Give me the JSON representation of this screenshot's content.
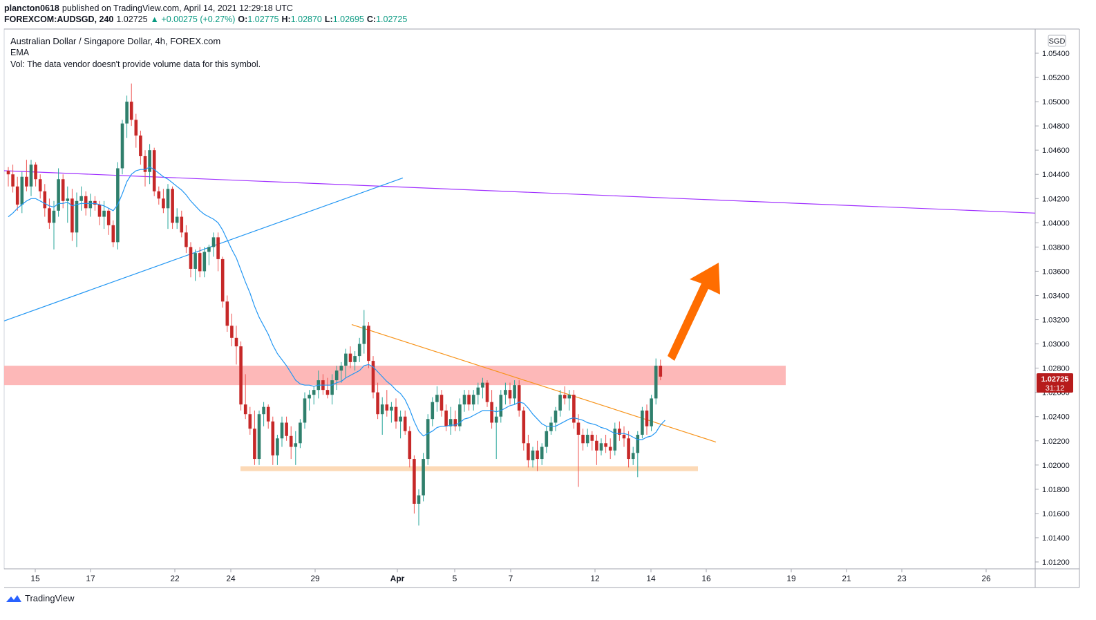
{
  "header": {
    "author": "plancton0618",
    "published_text": "published on TradingView.com, April 14, 2021 12:29:18 UTC",
    "symbol": "FOREXCOM:AUDSGD, 240",
    "last": "1.02725",
    "change": "▲ +0.00275 (+0.27%)",
    "o_label": "O:",
    "o_value": "1.02775",
    "h_label": "H:",
    "h_value": "1.02870",
    "l_label": "L:",
    "l_value": "1.02695",
    "c_label": "C:",
    "c_value": "1.02725"
  },
  "legend": {
    "title": "Australian Dollar / Singapore Dollar, 4h, FOREX.com",
    "indicator": "EMA",
    "volume_note": "Vol: The data vendor doesn't provide volume data for this symbol."
  },
  "currency": "SGD",
  "price_badge": {
    "price": "1.02725",
    "countdown": "31:12"
  },
  "brand": "TradingView",
  "colors": {
    "up": "#26a69a",
    "down": "#ef5350",
    "bull_body": "#2f7f6c",
    "bear_body": "#c62828",
    "ema": "#2196f3",
    "resistance_band": "#fdb4b4",
    "support_band": "#fcd9b6",
    "trend_purple": "#a030ff",
    "trend_blue": "#2196f3",
    "trend_orange": "#f7931a",
    "arrow": "#ff6d00"
  },
  "chart_data": {
    "type": "candlestick",
    "title": "Australian Dollar / Singapore Dollar, 4h, FOREX.com",
    "y_ticks": [
      "1.05400",
      "1.05200",
      "1.05000",
      "1.04800",
      "1.04600",
      "1.04400",
      "1.04200",
      "1.04000",
      "1.03800",
      "1.03600",
      "1.03400",
      "1.03200",
      "1.03000",
      "1.02800",
      "1.02600",
      "1.02400",
      "1.02200",
      "1.02000",
      "1.01800",
      "1.01600",
      "1.01400",
      "1.01200"
    ],
    "x_ticks": [
      "15",
      "17",
      "22",
      "24",
      "29",
      "Apr",
      "5",
      "7",
      "12",
      "14",
      "16",
      "19",
      "21",
      "23",
      "26"
    ],
    "ylim": [
      1.0112,
      1.0556
    ],
    "bar_count_range": [
      0,
      208
    ],
    "ohlc": [
      [
        1.0443,
        1.0446,
        1.043,
        1.044
      ],
      [
        1.044,
        1.0448,
        1.0425,
        1.043
      ],
      [
        1.043,
        1.0438,
        1.041,
        1.0415
      ],
      [
        1.0415,
        1.0442,
        1.0408,
        1.0438
      ],
      [
        1.0438,
        1.0452,
        1.0426,
        1.043
      ],
      [
        1.043,
        1.0452,
        1.0422,
        1.0448
      ],
      [
        1.0448,
        1.045,
        1.043,
        1.0436
      ],
      [
        1.0436,
        1.044,
        1.042,
        1.0426
      ],
      [
        1.0426,
        1.0432,
        1.0405,
        1.0412
      ],
      [
        1.0412,
        1.042,
        1.0395,
        1.04
      ],
      [
        1.04,
        1.0418,
        1.0378,
        1.041
      ],
      [
        1.041,
        1.0445,
        1.0405,
        1.0436
      ],
      [
        1.0436,
        1.044,
        1.0412,
        1.0418
      ],
      [
        1.0418,
        1.043,
        1.04,
        1.042
      ],
      [
        1.042,
        1.0428,
        1.0385,
        1.0392
      ],
      [
        1.0392,
        1.0425,
        1.038,
        1.0418
      ],
      [
        1.0418,
        1.043,
        1.041,
        1.0422
      ],
      [
        1.0422,
        1.0426,
        1.0406,
        1.0412
      ],
      [
        1.0412,
        1.0424,
        1.0405,
        1.0418
      ],
      [
        1.0418,
        1.0422,
        1.041,
        1.0415
      ],
      [
        1.0415,
        1.0418,
        1.0398,
        1.0405
      ],
      [
        1.0405,
        1.0418,
        1.0395,
        1.041
      ],
      [
        1.041,
        1.0412,
        1.039,
        1.0398
      ],
      [
        1.0398,
        1.0402,
        1.038,
        1.0384
      ],
      [
        1.0384,
        1.045,
        1.0378,
        1.0445
      ],
      [
        1.0445,
        1.0485,
        1.044,
        1.0482
      ],
      [
        1.0482,
        1.0505,
        1.047,
        1.05
      ],
      [
        1.05,
        1.0515,
        1.048,
        1.0485
      ],
      [
        1.0485,
        1.049,
        1.0462,
        1.0472
      ],
      [
        1.0472,
        1.0476,
        1.0448,
        1.0455
      ],
      [
        1.0455,
        1.046,
        1.043,
        1.0442
      ],
      [
        1.0442,
        1.0465,
        1.0432,
        1.046
      ],
      [
        1.046,
        1.0462,
        1.0422,
        1.0426
      ],
      [
        1.0426,
        1.043,
        1.0415,
        1.042
      ],
      [
        1.042,
        1.0428,
        1.0408,
        1.0412
      ],
      [
        1.0412,
        1.0432,
        1.0395,
        1.0428
      ],
      [
        1.0428,
        1.043,
        1.0395,
        1.04
      ],
      [
        1.04,
        1.0412,
        1.0395,
        1.0405
      ],
      [
        1.0405,
        1.041,
        1.0388,
        1.0392
      ],
      [
        1.0392,
        1.0398,
        1.0375,
        1.038
      ],
      [
        1.038,
        1.0384,
        1.0355,
        1.0362
      ],
      [
        1.0362,
        1.0378,
        1.0352,
        1.0375
      ],
      [
        1.0375,
        1.038,
        1.0355,
        1.036
      ],
      [
        1.036,
        1.038,
        1.0355,
        1.0376
      ],
      [
        1.0376,
        1.0382,
        1.0365,
        1.038
      ],
      [
        1.038,
        1.0392,
        1.0372,
        1.0388
      ],
      [
        1.0388,
        1.0392,
        1.036,
        1.037
      ],
      [
        1.037,
        1.0372,
        1.033,
        1.0335
      ],
      [
        1.0335,
        1.034,
        1.031,
        1.0315
      ],
      [
        1.0315,
        1.0325,
        1.0298,
        1.0305
      ],
      [
        1.0305,
        1.0315,
        1.0283,
        1.0298
      ],
      [
        1.0298,
        1.0302,
        1.0245,
        1.025
      ],
      [
        1.025,
        1.0275,
        1.0238,
        1.0242
      ],
      [
        1.0242,
        1.0248,
        1.0225,
        1.023
      ],
      [
        1.023,
        1.0245,
        1.02,
        1.0205
      ],
      [
        1.0205,
        1.0245,
        1.02,
        1.0242
      ],
      [
        1.0242,
        1.0252,
        1.0232,
        1.0248
      ],
      [
        1.0248,
        1.025,
        1.023,
        1.0236
      ],
      [
        1.0236,
        1.024,
        1.02,
        1.0208
      ],
      [
        1.0208,
        1.0225,
        1.02,
        1.0222
      ],
      [
        1.0222,
        1.024,
        1.0215,
        1.0235
      ],
      [
        1.0235,
        1.024,
        1.022,
        1.0224
      ],
      [
        1.0224,
        1.0232,
        1.0205,
        1.0215
      ],
      [
        1.0215,
        1.0228,
        1.02,
        1.0218
      ],
      [
        1.0218,
        1.0238,
        1.0214,
        1.0235
      ],
      [
        1.0235,
        1.026,
        1.023,
        1.0255
      ],
      [
        1.0255,
        1.0262,
        1.0245,
        1.0258
      ],
      [
        1.0258,
        1.0265,
        1.025,
        1.0262
      ],
      [
        1.0262,
        1.0278,
        1.0255,
        1.027
      ],
      [
        1.027,
        1.0275,
        1.0258,
        1.0262
      ],
      [
        1.0262,
        1.0272,
        1.0255,
        1.0258
      ],
      [
        1.0258,
        1.0275,
        1.025,
        1.027
      ],
      [
        1.027,
        1.0282,
        1.0262,
        1.0278
      ],
      [
        1.0278,
        1.0285,
        1.0268,
        1.0282
      ],
      [
        1.0282,
        1.0296,
        1.0272,
        1.0292
      ],
      [
        1.0292,
        1.0298,
        1.028,
        1.0285
      ],
      [
        1.0285,
        1.0294,
        1.0278,
        1.029
      ],
      [
        1.029,
        1.0305,
        1.0285,
        1.03
      ],
      [
        1.03,
        1.0328,
        1.0292,
        1.0315
      ],
      [
        1.0315,
        1.0318,
        1.028,
        1.0286
      ],
      [
        1.0286,
        1.029,
        1.0255,
        1.026
      ],
      [
        1.026,
        1.0268,
        1.0238,
        1.0242
      ],
      [
        1.0242,
        1.0256,
        1.0225,
        1.025
      ],
      [
        1.025,
        1.0262,
        1.024,
        1.0245
      ],
      [
        1.0245,
        1.0252,
        1.0235,
        1.0248
      ],
      [
        1.0248,
        1.0255,
        1.023,
        1.0236
      ],
      [
        1.0236,
        1.0245,
        1.0222,
        1.024
      ],
      [
        1.024,
        1.0245,
        1.0225,
        1.0228
      ],
      [
        1.0228,
        1.0232,
        1.0198,
        1.0205
      ],
      [
        1.0205,
        1.0208,
        1.016,
        1.0168
      ],
      [
        1.0168,
        1.018,
        1.015,
        1.0175
      ],
      [
        1.0175,
        1.021,
        1.017,
        1.0205
      ],
      [
        1.0205,
        1.0242,
        1.02,
        1.0238
      ],
      [
        1.0238,
        1.0256,
        1.0232,
        1.0252
      ],
      [
        1.0252,
        1.0265,
        1.0244,
        1.0258
      ],
      [
        1.0258,
        1.0262,
        1.024,
        1.0245
      ],
      [
        1.0245,
        1.025,
        1.0228,
        1.0232
      ],
      [
        1.0232,
        1.0248,
        1.0225,
        1.0238
      ],
      [
        1.0238,
        1.0245,
        1.0228,
        1.0232
      ],
      [
        1.0232,
        1.0255,
        1.0228,
        1.025
      ],
      [
        1.025,
        1.0262,
        1.0244,
        1.0258
      ],
      [
        1.0258,
        1.0262,
        1.0245,
        1.025
      ],
      [
        1.025,
        1.0262,
        1.0245,
        1.0258
      ],
      [
        1.0258,
        1.0268,
        1.025,
        1.0264
      ],
      [
        1.0264,
        1.0272,
        1.0255,
        1.0268
      ],
      [
        1.0268,
        1.027,
        1.0248,
        1.0252
      ],
      [
        1.0252,
        1.0262,
        1.023,
        1.0235
      ],
      [
        1.0235,
        1.0248,
        1.0205,
        1.024
      ],
      [
        1.024,
        1.0262,
        1.0235,
        1.0258
      ],
      [
        1.0258,
        1.0268,
        1.025,
        1.0262
      ],
      [
        1.0262,
        1.0268,
        1.025,
        1.0255
      ],
      [
        1.0255,
        1.027,
        1.025,
        1.0266
      ],
      [
        1.0266,
        1.027,
        1.024,
        1.0245
      ],
      [
        1.0245,
        1.0248,
        1.0212,
        1.0218
      ],
      [
        1.0218,
        1.0225,
        1.0198,
        1.0204
      ],
      [
        1.0204,
        1.0215,
        1.0198,
        1.0212
      ],
      [
        1.0212,
        1.022,
        1.0195,
        1.0205
      ],
      [
        1.0205,
        1.0218,
        1.02,
        1.0215
      ],
      [
        1.0215,
        1.0232,
        1.021,
        1.0228
      ],
      [
        1.0228,
        1.024,
        1.0225,
        1.0235
      ],
      [
        1.0235,
        1.0248,
        1.0228,
        1.0245
      ],
      [
        1.0245,
        1.0262,
        1.024,
        1.0258
      ],
      [
        1.0258,
        1.0265,
        1.025,
        1.0255
      ],
      [
        1.0255,
        1.0262,
        1.0245,
        1.0258
      ],
      [
        1.0258,
        1.0262,
        1.023,
        1.0235
      ],
      [
        1.0235,
        1.0242,
        1.0182,
        1.0225
      ],
      [
        1.0225,
        1.023,
        1.0212,
        1.0218
      ],
      [
        1.0218,
        1.023,
        1.0215,
        1.0225
      ],
      [
        1.0225,
        1.0228,
        1.0212,
        1.022
      ],
      [
        1.022,
        1.0225,
        1.02,
        1.0212
      ],
      [
        1.0212,
        1.0222,
        1.0208,
        1.0218
      ],
      [
        1.0218,
        1.0225,
        1.021,
        1.0215
      ],
      [
        1.0215,
        1.0222,
        1.0205,
        1.0212
      ],
      [
        1.0212,
        1.0235,
        1.0208,
        1.023
      ],
      [
        1.023,
        1.0236,
        1.022,
        1.0225
      ],
      [
        1.0225,
        1.0232,
        1.0215,
        1.0222
      ],
      [
        1.0222,
        1.0228,
        1.0198,
        1.0205
      ],
      [
        1.0205,
        1.0215,
        1.02,
        1.021
      ],
      [
        1.021,
        1.0228,
        1.019,
        1.0225
      ],
      [
        1.0225,
        1.0248,
        1.0222,
        1.0245
      ],
      [
        1.0245,
        1.025,
        1.0225,
        1.0232
      ],
      [
        1.0232,
        1.0258,
        1.0228,
        1.0255
      ],
      [
        1.0255,
        1.0288,
        1.025,
        1.0282
      ],
      [
        1.0282,
        1.0287,
        1.027,
        1.0273
      ]
    ],
    "ema": [
      1.0405,
      1.0408,
      1.0412,
      1.0415,
      1.0418,
      1.042,
      1.042,
      1.0418,
      1.0416,
      1.0414,
      1.0413,
      1.0416,
      1.0416,
      1.0417,
      1.0414,
      1.0415,
      1.0416,
      1.0416,
      1.0416,
      1.0416,
      1.0415,
      1.0414,
      1.0412,
      1.041,
      1.0415,
      1.0424,
      1.0434,
      1.044,
      1.0443,
      1.0444,
      1.0444,
      1.0446,
      1.0444,
      1.0441,
      1.0438,
      1.0436,
      1.0433,
      1.043,
      1.0427,
      1.0423,
      1.0418,
      1.0414,
      1.041,
      1.0407,
      1.0405,
      1.0403,
      1.04,
      1.0394,
      1.0386,
      1.0378,
      1.0371,
      1.0361,
      1.0351,
      1.0342,
      1.0331,
      1.0322,
      1.0315,
      1.0308,
      1.0299,
      1.0292,
      1.0287,
      1.0282,
      1.0276,
      1.027,
      1.0267,
      1.0266,
      1.0266,
      1.0265,
      1.0266,
      1.0266,
      1.0266,
      1.0266,
      1.0268,
      1.0269,
      1.0272,
      1.0274,
      1.0276,
      1.0278,
      1.0282,
      1.0283,
      1.0281,
      1.0277,
      1.0273,
      1.0269,
      1.0266,
      1.0262,
      1.0259,
      1.0254,
      1.0246,
      1.0236,
      1.0228,
      1.0224,
      1.0226,
      1.0228,
      1.0231,
      1.0232,
      1.0232,
      1.0233,
      1.0233,
      1.0235,
      1.0238,
      1.0239,
      1.0241,
      1.0243,
      1.0245,
      1.0245,
      1.0245,
      1.0244,
      1.0245,
      1.0247,
      1.0249,
      1.025,
      1.0252,
      1.0251,
      1.0247,
      1.0242,
      1.0238,
      1.0234,
      1.0232,
      1.0232,
      1.0232,
      1.0234,
      1.0236,
      1.0238,
      1.0239,
      1.0238,
      1.0237,
      1.0235,
      1.0234,
      1.0233,
      1.0231,
      1.023,
      1.0228,
      1.0226,
      1.0226,
      1.0226,
      1.0225,
      1.0223,
      1.0221,
      1.0221,
      1.0223,
      1.0224,
      1.0227,
      1.0233,
      1.0237
    ]
  }
}
